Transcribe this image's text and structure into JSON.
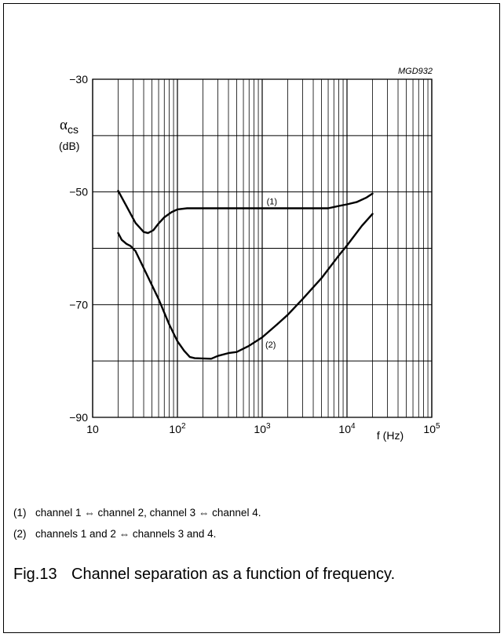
{
  "chart_data": {
    "type": "line",
    "code": "MGD932",
    "ylabel_symbol": "α",
    "ylabel_subscript": "cs",
    "ylabel_unit": "(dB)",
    "xlabel": "f (Hz)",
    "xscale": "log",
    "xlim": [
      10,
      100000
    ],
    "ylim": [
      -90,
      -30
    ],
    "grid": true,
    "y_ticks": [
      {
        "value": -30,
        "label": "−30"
      },
      {
        "value": -50,
        "label": "−50"
      },
      {
        "value": -70,
        "label": "−70"
      },
      {
        "value": -90,
        "label": "−90"
      }
    ],
    "x_ticks": [
      {
        "value": 10,
        "base": "10",
        "exp": ""
      },
      {
        "value": 100,
        "base": "10",
        "exp": "2"
      },
      {
        "value": 1000,
        "base": "10",
        "exp": "3"
      },
      {
        "value": 10000,
        "base": "10",
        "exp": "4"
      },
      {
        "value": 100000,
        "base": "10",
        "exp": "5"
      }
    ],
    "series": [
      {
        "label": "(1)",
        "points": [
          [
            20,
            -49.8
          ],
          [
            25,
            -52.5
          ],
          [
            32,
            -55.5
          ],
          [
            40,
            -57.1
          ],
          [
            45,
            -57.3
          ],
          [
            52,
            -56.8
          ],
          [
            60,
            -55.6
          ],
          [
            70,
            -54.5
          ],
          [
            85,
            -53.6
          ],
          [
            100,
            -53.1
          ],
          [
            130,
            -52.9
          ],
          [
            200,
            -52.9
          ],
          [
            500,
            -52.9
          ],
          [
            1000,
            -52.9
          ],
          [
            3000,
            -52.9
          ],
          [
            6000,
            -52.9
          ],
          [
            8000,
            -52.5
          ],
          [
            10000,
            -52.2
          ],
          [
            13000,
            -51.8
          ],
          [
            17000,
            -51.0
          ],
          [
            20000,
            -50.3
          ]
        ]
      },
      {
        "label": "(2)",
        "points": [
          [
            20,
            -57.3
          ],
          [
            22,
            -58.5
          ],
          [
            25,
            -59.2
          ],
          [
            28,
            -59.6
          ],
          [
            32,
            -60.5
          ],
          [
            40,
            -63.5
          ],
          [
            60,
            -69.0
          ],
          [
            80,
            -73.5
          ],
          [
            100,
            -76.5
          ],
          [
            120,
            -78.2
          ],
          [
            140,
            -79.3
          ],
          [
            160,
            -79.5
          ],
          [
            250,
            -79.6
          ],
          [
            300,
            -79.1
          ],
          [
            400,
            -78.6
          ],
          [
            500,
            -78.4
          ],
          [
            700,
            -77.3
          ],
          [
            1000,
            -75.8
          ],
          [
            1500,
            -73.5
          ],
          [
            2000,
            -71.8
          ],
          [
            3000,
            -69.0
          ],
          [
            5000,
            -65.3
          ],
          [
            8000,
            -61.3
          ],
          [
            10000,
            -59.5
          ],
          [
            15000,
            -56.0
          ],
          [
            20000,
            -53.9
          ]
        ]
      }
    ]
  },
  "notes": [
    {
      "num": "(1)",
      "text": "channel 1 ⇔ channel 2, channel 3 ⇔ channel 4."
    },
    {
      "num": "(2)",
      "text": "channels 1 and 2 ⇔ channels 3 and 4."
    }
  ],
  "caption": {
    "fig": "Fig.13",
    "text": "Channel separation as a function of frequency."
  }
}
